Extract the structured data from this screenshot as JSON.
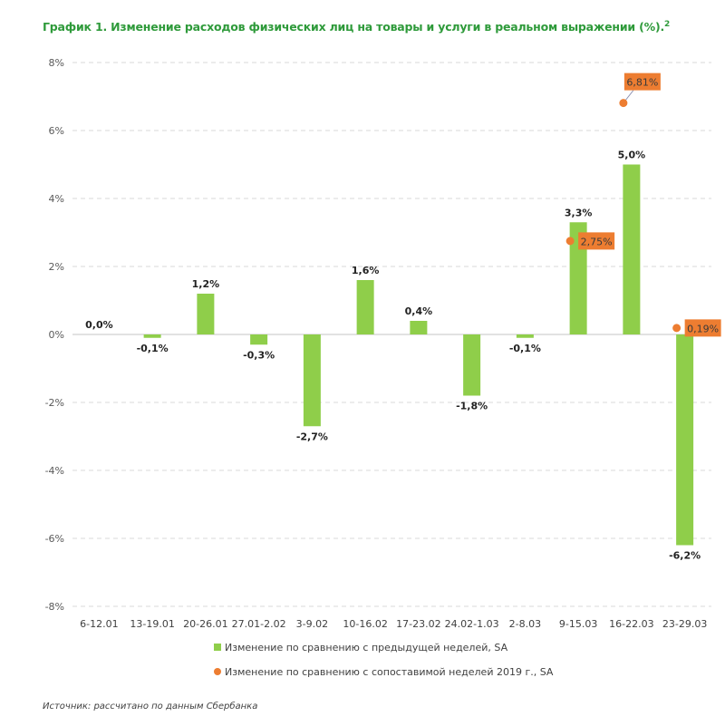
{
  "title": "График 1. Изменение расходов физических лиц на товары и услуги в реальном выражении (%).",
  "title_footnote": "2",
  "source": "Источник: рассчитано по данным Сбербанка",
  "colors": {
    "bars": "#8fce4a",
    "points": "#ed7d31",
    "title": "#2e9a3a",
    "grid": "#d9d9d9"
  },
  "chart_data": {
    "type": "bar",
    "title": "Изменение расходов физических лиц на товары и услуги в реальном выражении (%)",
    "xlabel": "",
    "ylabel": "",
    "ylim": [
      -8,
      8
    ],
    "yticks": [
      8,
      6,
      4,
      2,
      0,
      -2,
      -4,
      -6,
      -8
    ],
    "ytick_labels": [
      "8%",
      "6%",
      "4%",
      "2%",
      "0%",
      "-2%",
      "-4%",
      "-6%",
      "-8%"
    ],
    "grid": true,
    "legend_position": "bottom",
    "categories": [
      "6-12.01",
      "13-19.01",
      "20-26.01",
      "27.01-2.02",
      "3-9.02",
      "10-16.02",
      "17-23.02",
      "24.02-1.03",
      "2-8.03",
      "9-15.03",
      "16-22.03",
      "23-29.03"
    ],
    "series": [
      {
        "name": "Изменение по сравнению с предыдущей неделей, SA",
        "type": "bar",
        "values": [
          0.0,
          -0.1,
          1.2,
          -0.3,
          -2.7,
          1.6,
          0.4,
          -1.8,
          -0.1,
          3.3,
          5.0,
          -6.2
        ],
        "labels": [
          "0,0%",
          "-0,1%",
          "1,2%",
          "-0,3%",
          "-2,7%",
          "1,6%",
          "0,4%",
          "-1,8%",
          "-0,1%",
          "3,3%",
          "5,0%",
          "-6,2%"
        ]
      },
      {
        "name": "Изменение по сравнению с сопоставимой неделей 2019 г., SA",
        "type": "scatter",
        "values": [
          null,
          null,
          null,
          null,
          null,
          null,
          null,
          null,
          null,
          2.75,
          6.81,
          0.19
        ],
        "labels": [
          null,
          null,
          null,
          null,
          null,
          null,
          null,
          null,
          null,
          "2,75%",
          "6,81%",
          "0,19%"
        ]
      }
    ]
  }
}
